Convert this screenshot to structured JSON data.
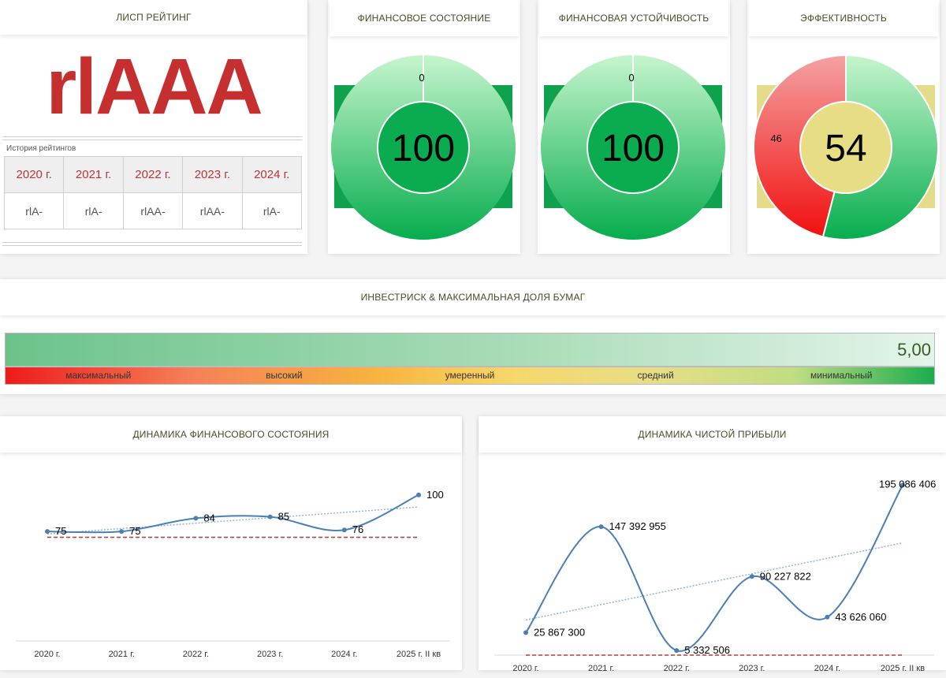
{
  "lisp": {
    "header": "ЛИСП РЕЙТИНГ",
    "rating": "rlAAA",
    "history_label": "История рейтингов",
    "history": [
      {
        "year": "2020 г.",
        "rating": "rlA-"
      },
      {
        "year": "2021 г.",
        "rating": "rlA-"
      },
      {
        "year": "2022 г.",
        "rating": "rlAA-"
      },
      {
        "year": "2023 г.",
        "rating": "rlAA-"
      },
      {
        "year": "2024 г.",
        "rating": "rlA-"
      }
    ]
  },
  "gauges": [
    {
      "header": "ФИНАНСОВОЕ СОСТОЯНИЕ",
      "value": "100",
      "remainder": "0",
      "value_num": 100,
      "inner_color": "#0bab4f",
      "back_color": "#0fa14e"
    },
    {
      "header": "ФИНАНСОВАЯ УСТОЙЧИВОСТЬ",
      "value": "100",
      "remainder": "0",
      "value_num": 100,
      "inner_color": "#0bab4f",
      "back_color": "#0fa14e"
    },
    {
      "header": "ЭФФЕКТИВНОСТЬ",
      "value": "54",
      "remainder": "46",
      "value_num": 54,
      "inner_color": "#e7dd84",
      "back_color": "#e4dc8a"
    }
  ],
  "investrisk": {
    "header": "ИНВЕСТРИСК & МАКСИМАЛЬНАЯ ДОЛЯ БУМАГ",
    "value": "5,00",
    "scale": [
      "максимальный",
      "высокий",
      "умеренный",
      "средний",
      "минимальный"
    ]
  },
  "colors": {
    "accent_red": "#c62f2f",
    "line": "#4a7fb5",
    "target_line": "#b03a3a",
    "trend": "#8fb4d8",
    "good_green": "#0bab4f"
  },
  "chart_fin": {
    "header": "ДИНАМИКА ФИНАНСОВОГО СОСТОЯНИЯ",
    "chart_data": {
      "type": "line",
      "categories": [
        "2020 г.",
        "2021 г.",
        "2022 г.",
        "2023 г.",
        "2024 г.",
        "2025 г. II кв"
      ],
      "values": [
        75,
        75,
        84,
        85,
        76,
        100
      ],
      "labels": [
        "75",
        "75",
        "84",
        "85",
        "76",
        "100"
      ],
      "ylim": [
        0,
        115
      ],
      "threshold": 71,
      "trendline": true
    }
  },
  "chart_profit": {
    "header": "ДИНАМИКА ЧИСТОЙ ПРИБЫЛИ",
    "chart_data": {
      "type": "line",
      "categories": [
        "2020 г.",
        "2021 г.",
        "2022 г.",
        "2023 г.",
        "2024 г.",
        "2025 г. II кв"
      ],
      "values": [
        25867300,
        147392955,
        5332506,
        90227822,
        43626060,
        195086406
      ],
      "labels": [
        "25 867 300",
        "147 392 955",
        "5 332 506",
        "90 227 822",
        "43 626 060",
        "195 086 406"
      ],
      "ylim": [
        0,
        200000000
      ],
      "threshold": 0,
      "trendline": true
    }
  }
}
